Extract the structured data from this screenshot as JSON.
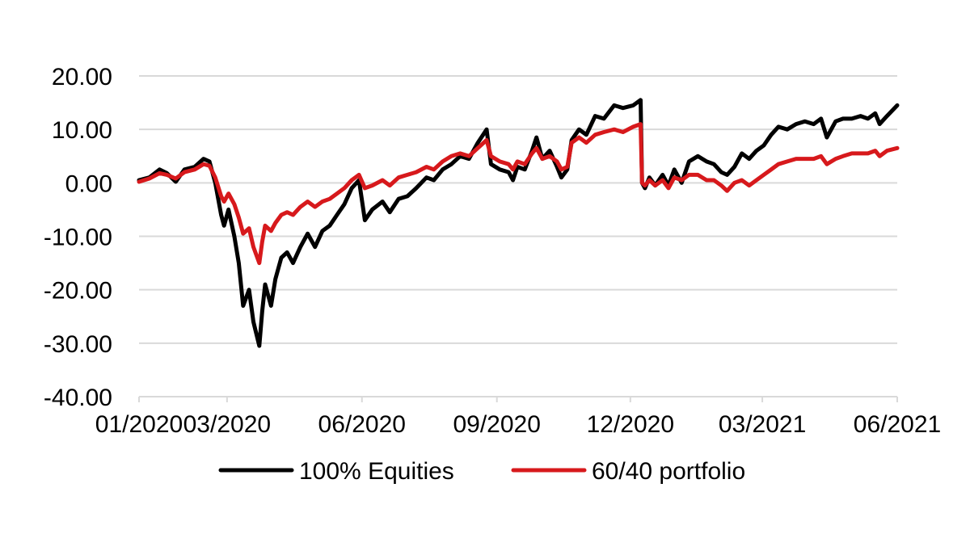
{
  "chart_data": {
    "type": "line",
    "title": "",
    "xlabel": "",
    "ylabel": "",
    "ylim": [
      -40,
      20
    ],
    "y_ticks": [
      20,
      10,
      0,
      -10,
      -20,
      -30,
      -40
    ],
    "y_tick_labels": [
      "20.00",
      "10.00",
      "0.00",
      "-10.00",
      "-20.00",
      "-30.00",
      "-40.00"
    ],
    "x_range": [
      "2020-01-01",
      "2021-06-01"
    ],
    "x_ticks": [
      "2020-01-01",
      "2020-03-01",
      "2020-06-01",
      "2020-09-01",
      "2020-12-01",
      "2021-03-01",
      "2021-06-01"
    ],
    "x_tick_labels": [
      "01/2020",
      "03/2020",
      "06/2020",
      "09/2020",
      "12/2020",
      "03/2021",
      "06/2021"
    ],
    "grid": "horizontal",
    "legend_position": "bottom",
    "series": [
      {
        "name": "100% Equities",
        "color": "#000000",
        "points": [
          [
            "2020-01-01",
            0.5
          ],
          [
            "2020-01-08",
            1.0
          ],
          [
            "2020-01-15",
            2.5
          ],
          [
            "2020-01-20",
            1.8
          ],
          [
            "2020-01-26",
            0.2
          ],
          [
            "2020-02-01",
            2.5
          ],
          [
            "2020-02-08",
            3.0
          ],
          [
            "2020-02-14",
            4.5
          ],
          [
            "2020-02-18",
            4.0
          ],
          [
            "2020-02-22",
            0.0
          ],
          [
            "2020-02-26",
            -6.0
          ],
          [
            "2020-02-28",
            -8.0
          ],
          [
            "2020-03-02",
            -5.0
          ],
          [
            "2020-03-06",
            -10.0
          ],
          [
            "2020-03-09",
            -15.0
          ],
          [
            "2020-03-12",
            -23.0
          ],
          [
            "2020-03-16",
            -20.0
          ],
          [
            "2020-03-19",
            -26.0
          ],
          [
            "2020-03-23",
            -30.5
          ],
          [
            "2020-03-25",
            -24.0
          ],
          [
            "2020-03-27",
            -19.0
          ],
          [
            "2020-03-31",
            -23.0
          ],
          [
            "2020-04-03",
            -18.0
          ],
          [
            "2020-04-07",
            -14.0
          ],
          [
            "2020-04-11",
            -13.0
          ],
          [
            "2020-04-15",
            -15.0
          ],
          [
            "2020-04-20",
            -12.0
          ],
          [
            "2020-04-25",
            -9.5
          ],
          [
            "2020-04-30",
            -12.0
          ],
          [
            "2020-05-05",
            -9.0
          ],
          [
            "2020-05-10",
            -8.0
          ],
          [
            "2020-05-15",
            -6.0
          ],
          [
            "2020-05-20",
            -4.0
          ],
          [
            "2020-05-25",
            -1.0
          ],
          [
            "2020-05-30",
            0.5
          ],
          [
            "2020-06-03",
            -7.0
          ],
          [
            "2020-06-08",
            -5.0
          ],
          [
            "2020-06-15",
            -3.5
          ],
          [
            "2020-06-20",
            -5.5
          ],
          [
            "2020-06-26",
            -3.0
          ],
          [
            "2020-07-02",
            -2.5
          ],
          [
            "2020-07-08",
            -1.0
          ],
          [
            "2020-07-15",
            1.0
          ],
          [
            "2020-07-20",
            0.5
          ],
          [
            "2020-07-26",
            2.5
          ],
          [
            "2020-08-01",
            3.5
          ],
          [
            "2020-08-07",
            5.0
          ],
          [
            "2020-08-13",
            4.5
          ],
          [
            "2020-08-19",
            7.5
          ],
          [
            "2020-08-25",
            10.0
          ],
          [
            "2020-08-28",
            3.5
          ],
          [
            "2020-09-03",
            2.5
          ],
          [
            "2020-09-09",
            2.0
          ],
          [
            "2020-09-12",
            0.5
          ],
          [
            "2020-09-15",
            3.0
          ],
          [
            "2020-09-20",
            2.5
          ],
          [
            "2020-09-25",
            6.0
          ],
          [
            "2020-09-28",
            8.5
          ],
          [
            "2020-10-02",
            4.5
          ],
          [
            "2020-10-07",
            6.0
          ],
          [
            "2020-10-12",
            3.0
          ],
          [
            "2020-10-15",
            1.0
          ],
          [
            "2020-10-19",
            2.5
          ],
          [
            "2020-10-22",
            8.0
          ],
          [
            "2020-10-27",
            10.0
          ],
          [
            "2020-11-01",
            9.0
          ],
          [
            "2020-11-07",
            12.5
          ],
          [
            "2020-11-13",
            12.0
          ],
          [
            "2020-11-20",
            14.5
          ],
          [
            "2020-11-26",
            14.0
          ],
          [
            "2020-12-03",
            14.5
          ],
          [
            "2020-12-08",
            15.5
          ],
          [
            "2020-12-09",
            0.0
          ],
          [
            "2020-12-11",
            -1.0
          ],
          [
            "2020-12-14",
            1.0
          ],
          [
            "2020-12-18",
            -0.5
          ],
          [
            "2020-12-23",
            1.5
          ],
          [
            "2020-12-27",
            -0.5
          ],
          [
            "2020-12-31",
            2.5
          ],
          [
            "2021-01-05",
            0.0
          ],
          [
            "2021-01-10",
            4.0
          ],
          [
            "2021-01-16",
            5.0
          ],
          [
            "2021-01-22",
            4.0
          ],
          [
            "2021-01-27",
            3.5
          ],
          [
            "2021-02-01",
            2.0
          ],
          [
            "2021-02-05",
            1.5
          ],
          [
            "2021-02-10",
            3.0
          ],
          [
            "2021-02-15",
            5.5
          ],
          [
            "2021-02-20",
            4.5
          ],
          [
            "2021-02-25",
            6.0
          ],
          [
            "2021-03-02",
            7.0
          ],
          [
            "2021-03-07",
            9.0
          ],
          [
            "2021-03-12",
            10.5
          ],
          [
            "2021-03-18",
            10.0
          ],
          [
            "2021-03-24",
            11.0
          ],
          [
            "2021-03-30",
            11.5
          ],
          [
            "2021-04-05",
            11.0
          ],
          [
            "2021-04-10",
            12.0
          ],
          [
            "2021-04-14",
            8.5
          ],
          [
            "2021-04-20",
            11.5
          ],
          [
            "2021-04-25",
            12.0
          ],
          [
            "2021-05-01",
            12.0
          ],
          [
            "2021-05-07",
            12.5
          ],
          [
            "2021-05-12",
            12.0
          ],
          [
            "2021-05-17",
            13.0
          ],
          [
            "2021-05-20",
            11.0
          ],
          [
            "2021-05-25",
            12.5
          ],
          [
            "2021-06-01",
            14.5
          ]
        ]
      },
      {
        "name": "60/40 portfolio",
        "color": "#d7191c",
        "points": [
          [
            "2020-01-01",
            0.2
          ],
          [
            "2020-01-08",
            0.8
          ],
          [
            "2020-01-15",
            1.8
          ],
          [
            "2020-01-20",
            1.5
          ],
          [
            "2020-01-26",
            0.8
          ],
          [
            "2020-02-01",
            2.0
          ],
          [
            "2020-02-08",
            2.5
          ],
          [
            "2020-02-14",
            3.5
          ],
          [
            "2020-02-18",
            3.2
          ],
          [
            "2020-02-22",
            1.0
          ],
          [
            "2020-02-26",
            -2.5
          ],
          [
            "2020-02-28",
            -3.5
          ],
          [
            "2020-03-02",
            -2.0
          ],
          [
            "2020-03-06",
            -4.0
          ],
          [
            "2020-03-09",
            -6.5
          ],
          [
            "2020-03-12",
            -9.5
          ],
          [
            "2020-03-16",
            -8.5
          ],
          [
            "2020-03-19",
            -12.0
          ],
          [
            "2020-03-23",
            -15.0
          ],
          [
            "2020-03-25",
            -11.0
          ],
          [
            "2020-03-27",
            -8.0
          ],
          [
            "2020-03-31",
            -9.0
          ],
          [
            "2020-04-03",
            -7.5
          ],
          [
            "2020-04-07",
            -6.0
          ],
          [
            "2020-04-11",
            -5.5
          ],
          [
            "2020-04-15",
            -6.0
          ],
          [
            "2020-04-20",
            -4.5
          ],
          [
            "2020-04-25",
            -3.5
          ],
          [
            "2020-04-30",
            -4.5
          ],
          [
            "2020-05-05",
            -3.5
          ],
          [
            "2020-05-10",
            -3.0
          ],
          [
            "2020-05-15",
            -2.0
          ],
          [
            "2020-05-20",
            -1.0
          ],
          [
            "2020-05-25",
            0.5
          ],
          [
            "2020-05-30",
            1.5
          ],
          [
            "2020-06-03",
            -1.0
          ],
          [
            "2020-06-08",
            -0.5
          ],
          [
            "2020-06-15",
            0.5
          ],
          [
            "2020-06-20",
            -0.5
          ],
          [
            "2020-06-26",
            1.0
          ],
          [
            "2020-07-02",
            1.5
          ],
          [
            "2020-07-08",
            2.0
          ],
          [
            "2020-07-15",
            3.0
          ],
          [
            "2020-07-20",
            2.5
          ],
          [
            "2020-07-26",
            4.0
          ],
          [
            "2020-08-01",
            5.0
          ],
          [
            "2020-08-07",
            5.5
          ],
          [
            "2020-08-13",
            5.0
          ],
          [
            "2020-08-19",
            6.5
          ],
          [
            "2020-08-25",
            8.0
          ],
          [
            "2020-08-28",
            5.0
          ],
          [
            "2020-09-03",
            4.0
          ],
          [
            "2020-09-09",
            3.5
          ],
          [
            "2020-09-12",
            2.5
          ],
          [
            "2020-09-15",
            4.0
          ],
          [
            "2020-09-20",
            3.5
          ],
          [
            "2020-09-25",
            5.5
          ],
          [
            "2020-09-28",
            6.5
          ],
          [
            "2020-10-02",
            4.5
          ],
          [
            "2020-10-07",
            5.0
          ],
          [
            "2020-10-12",
            4.0
          ],
          [
            "2020-10-15",
            2.5
          ],
          [
            "2020-10-19",
            3.0
          ],
          [
            "2020-10-22",
            7.5
          ],
          [
            "2020-10-27",
            8.5
          ],
          [
            "2020-11-01",
            7.5
          ],
          [
            "2020-11-07",
            9.0
          ],
          [
            "2020-11-13",
            9.5
          ],
          [
            "2020-11-20",
            10.0
          ],
          [
            "2020-11-26",
            9.5
          ],
          [
            "2020-12-03",
            10.5
          ],
          [
            "2020-12-08",
            11.0
          ],
          [
            "2020-12-09",
            0.0
          ],
          [
            "2020-12-11",
            -0.5
          ],
          [
            "2020-12-14",
            0.5
          ],
          [
            "2020-12-18",
            -0.5
          ],
          [
            "2020-12-23",
            0.5
          ],
          [
            "2020-12-27",
            -1.0
          ],
          [
            "2020-12-31",
            1.0
          ],
          [
            "2021-01-05",
            0.5
          ],
          [
            "2021-01-10",
            1.5
          ],
          [
            "2021-01-16",
            1.5
          ],
          [
            "2021-01-22",
            0.5
          ],
          [
            "2021-01-27",
            0.5
          ],
          [
            "2021-02-01",
            -0.5
          ],
          [
            "2021-02-05",
            -1.5
          ],
          [
            "2021-02-10",
            0.0
          ],
          [
            "2021-02-15",
            0.5
          ],
          [
            "2021-02-20",
            -0.5
          ],
          [
            "2021-02-25",
            0.5
          ],
          [
            "2021-03-02",
            1.5
          ],
          [
            "2021-03-07",
            2.5
          ],
          [
            "2021-03-12",
            3.5
          ],
          [
            "2021-03-18",
            4.0
          ],
          [
            "2021-03-24",
            4.5
          ],
          [
            "2021-03-30",
            4.5
          ],
          [
            "2021-04-05",
            4.5
          ],
          [
            "2021-04-10",
            5.0
          ],
          [
            "2021-04-14",
            3.5
          ],
          [
            "2021-04-20",
            4.5
          ],
          [
            "2021-04-25",
            5.0
          ],
          [
            "2021-05-01",
            5.5
          ],
          [
            "2021-05-07",
            5.5
          ],
          [
            "2021-05-12",
            5.5
          ],
          [
            "2021-05-17",
            6.0
          ],
          [
            "2021-05-20",
            5.0
          ],
          [
            "2021-05-25",
            6.0
          ],
          [
            "2021-06-01",
            6.5
          ]
        ]
      }
    ]
  }
}
